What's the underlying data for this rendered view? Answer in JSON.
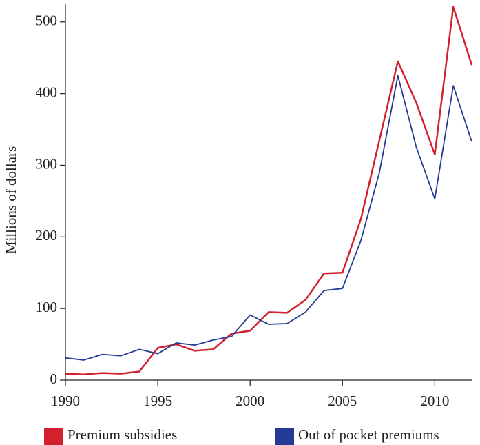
{
  "chart_data": {
    "type": "line",
    "y_label": "Millions of dollars",
    "x": [
      1990,
      1991,
      1992,
      1993,
      1994,
      1995,
      1996,
      1997,
      1998,
      1999,
      2000,
      2001,
      2002,
      2003,
      2004,
      2005,
      2006,
      2007,
      2008,
      2009,
      2010,
      2011,
      2012
    ],
    "series": [
      {
        "name": "Premium subsidies",
        "color": "#d2202e",
        "values": [
          9,
          8,
          10,
          9,
          12,
          45,
          50,
          41,
          43,
          65,
          69,
          95,
          94,
          112,
          149,
          150,
          225,
          335,
          445,
          387,
          315,
          521,
          440
        ]
      },
      {
        "name": "Out of pocket premiums",
        "color": "#253a93",
        "values": [
          31,
          28,
          36,
          34,
          43,
          37,
          52,
          49,
          56,
          61,
          91,
          78,
          79,
          95,
          125,
          128,
          195,
          290,
          425,
          325,
          253,
          411,
          333
        ]
      }
    ],
    "xlim": [
      1990,
      2012
    ],
    "xticks": [
      1990,
      1995,
      2000,
      2005,
      2010
    ],
    "ylim": [
      0,
      520
    ],
    "yticks": [
      0,
      100,
      200,
      300,
      400,
      500
    ],
    "legend": "bottom"
  }
}
